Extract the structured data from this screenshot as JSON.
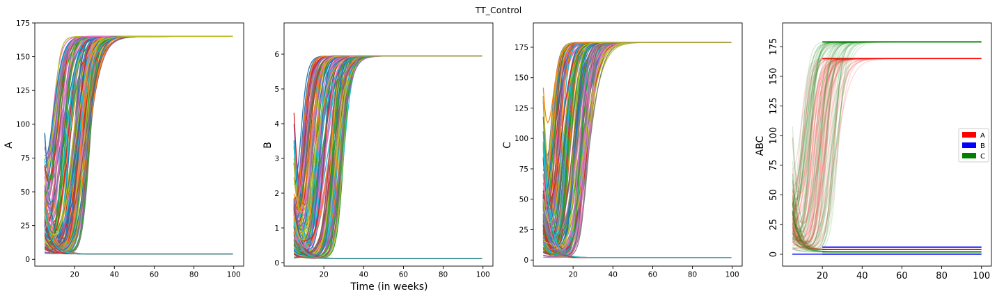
{
  "figure": {
    "suptitle": "TT_Control"
  },
  "chart_data": [
    {
      "type": "line",
      "ylabel": "A",
      "xlabel": "",
      "xlim": [
        0,
        105
      ],
      "ylim": [
        -5,
        175
      ],
      "xticks": [
        20,
        40,
        60,
        80,
        100
      ],
      "yticks": [
        0,
        25,
        50,
        75,
        100,
        125,
        150,
        175
      ],
      "grid": false,
      "plateaus": [
        165,
        4
      ],
      "trajectory_count": 150,
      "transition_weeks": [
        8,
        28
      ]
    },
    {
      "type": "line",
      "ylabel": "B",
      "xlabel": "Time (in weeks)",
      "xlim": [
        0,
        105
      ],
      "ylim": [
        -0.1,
        6.9
      ],
      "xticks": [
        20,
        40,
        60,
        80,
        100
      ],
      "yticks": [
        0,
        1,
        2,
        3,
        4,
        5,
        6
      ],
      "grid": false,
      "plateaus": [
        5.95,
        0.12
      ],
      "trajectory_count": 150,
      "transition_weeks": [
        8,
        30
      ]
    },
    {
      "type": "line",
      "ylabel": "C",
      "xlabel": "",
      "xlim": [
        0,
        105
      ],
      "ylim": [
        -5,
        195
      ],
      "xticks": [
        20,
        40,
        60,
        80,
        100
      ],
      "yticks": [
        0,
        25,
        50,
        75,
        100,
        125,
        150,
        175
      ],
      "grid": false,
      "plateaus": [
        179,
        2
      ],
      "trajectory_count": 150,
      "transition_weeks": [
        8,
        28
      ]
    },
    {
      "type": "line",
      "ylabel": "ABC",
      "xlabel": "",
      "xlim": [
        0,
        105
      ],
      "ylim": [
        -10,
        195
      ],
      "xticks": [
        20,
        40,
        60,
        80,
        100
      ],
      "yticks": [
        0,
        25,
        50,
        75,
        100,
        125,
        150,
        175
      ],
      "grid": false,
      "legend": {
        "placement": "center-right",
        "entries": [
          {
            "label": "A",
            "color": "#ff0000"
          },
          {
            "label": "B",
            "color": "#0000ff"
          },
          {
            "label": "C",
            "color": "#008000"
          }
        ]
      },
      "series": [
        {
          "name": "A",
          "color": "#ff0000",
          "plateaus": [
            165,
            4
          ]
        },
        {
          "name": "B",
          "color": "#0000ff",
          "plateaus": [
            6,
            0.1
          ]
        },
        {
          "name": "C",
          "color": "#008000",
          "plateaus": [
            179,
            2
          ]
        }
      ]
    }
  ],
  "colors": {
    "palette": [
      "#1f77b4",
      "#ff7f0e",
      "#2ca02c",
      "#d62728",
      "#9467bd",
      "#8c564b",
      "#e377c2",
      "#7f7f7f",
      "#bcbd22",
      "#17becf"
    ]
  }
}
